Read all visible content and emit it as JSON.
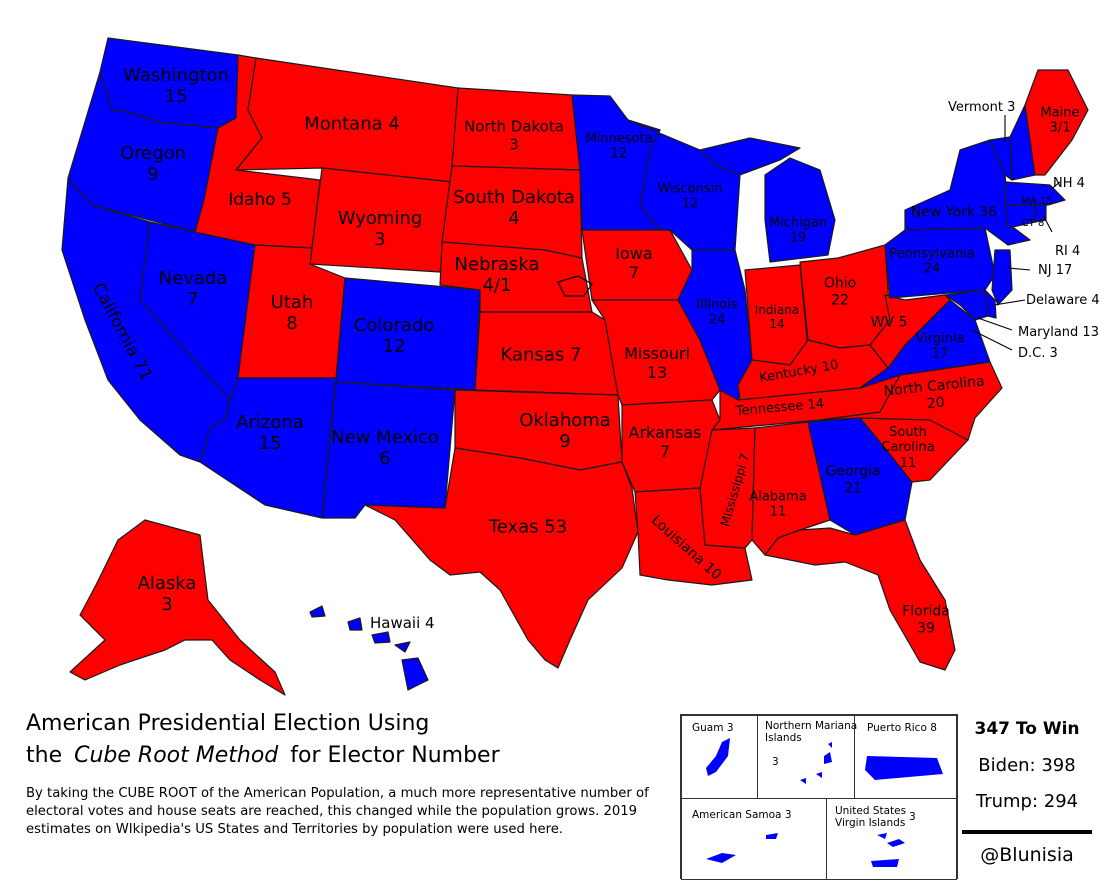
{
  "colors": {
    "dem": "#0000ff",
    "rep": "#ff0000",
    "border": "#1a1a1a"
  },
  "states": {
    "WA": {
      "name": "Washington",
      "votes": "15",
      "party": "dem"
    },
    "OR": {
      "name": "Oregon",
      "votes": "9",
      "party": "dem"
    },
    "CA": {
      "name": "California",
      "votes": "71",
      "party": "dem"
    },
    "NV": {
      "name": "Nevada",
      "votes": "7",
      "party": "dem"
    },
    "ID": {
      "name": "Idaho",
      "votes": "5",
      "party": "rep"
    },
    "MT": {
      "name": "Montana",
      "votes": "4",
      "party": "rep"
    },
    "WY": {
      "name": "Wyoming",
      "votes": "3",
      "party": "rep"
    },
    "UT": {
      "name": "Utah",
      "votes": "8",
      "party": "rep"
    },
    "AZ": {
      "name": "Arizona",
      "votes": "15",
      "party": "dem"
    },
    "CO": {
      "name": "Colorado",
      "votes": "12",
      "party": "dem"
    },
    "NM": {
      "name": "New Mexico",
      "votes": "6",
      "party": "dem"
    },
    "ND": {
      "name": "North Dakota",
      "votes": "3",
      "party": "rep"
    },
    "SD": {
      "name": "South Dakota",
      "votes": "4",
      "party": "rep"
    },
    "NE": {
      "name": "Nebraska",
      "votes": "4/1",
      "party": "rep"
    },
    "KS": {
      "name": "Kansas",
      "votes": "7",
      "party": "rep"
    },
    "OK": {
      "name": "Oklahoma",
      "votes": "9",
      "party": "rep"
    },
    "TX": {
      "name": "Texas",
      "votes": "53",
      "party": "rep"
    },
    "MN": {
      "name": "Minnesota",
      "votes": "12",
      "party": "dem"
    },
    "IA": {
      "name": "Iowa",
      "votes": "7",
      "party": "rep"
    },
    "MO": {
      "name": "Missouri",
      "votes": "13",
      "party": "rep"
    },
    "AR": {
      "name": "Arkansas",
      "votes": "7",
      "party": "rep"
    },
    "LA": {
      "name": "Louisiana",
      "votes": "10",
      "party": "rep"
    },
    "WI": {
      "name": "Wisconsin",
      "votes": "12",
      "party": "dem"
    },
    "IL": {
      "name": "Illinois",
      "votes": "24",
      "party": "dem"
    },
    "MI": {
      "name": "Michigan",
      "votes": "19",
      "party": "dem"
    },
    "IN": {
      "name": "Indiana",
      "votes": "14",
      "party": "rep"
    },
    "OH": {
      "name": "Ohio",
      "votes": "22",
      "party": "rep"
    },
    "KY": {
      "name": "Kentucky",
      "votes": "10",
      "party": "rep"
    },
    "TN": {
      "name": "Tennessee",
      "votes": "14",
      "party": "rep"
    },
    "MS": {
      "name": "Mississippi",
      "votes": "7",
      "party": "rep"
    },
    "AL": {
      "name": "Alabama",
      "votes": "11",
      "party": "rep"
    },
    "GA": {
      "name": "Georgia",
      "votes": "21",
      "party": "dem"
    },
    "FL": {
      "name": "Florida",
      "votes": "39",
      "party": "rep"
    },
    "SC": {
      "name": "South Carolina",
      "votes": "11",
      "party": "rep"
    },
    "NC": {
      "name": "North Carolina",
      "votes": "20",
      "party": "rep"
    },
    "VA": {
      "name": "Virginia",
      "votes": "17",
      "party": "dem"
    },
    "WV": {
      "name": "WV",
      "votes": "5",
      "party": "rep"
    },
    "PA": {
      "name": "Pennsylvania",
      "votes": "24",
      "party": "dem"
    },
    "NY": {
      "name": "New York",
      "votes": "36",
      "party": "dem"
    },
    "VT": {
      "name": "Vermont",
      "votes": "3",
      "party": "dem"
    },
    "NH": {
      "name": "NH",
      "votes": "4",
      "party": "dem"
    },
    "ME": {
      "name": "Maine",
      "votes": "3/1",
      "party": "rep"
    },
    "MA": {
      "name": "MA",
      "votes": "15",
      "party": "dem"
    },
    "CT": {
      "name": "CT",
      "votes": "8",
      "party": "dem"
    },
    "RI": {
      "name": "RI",
      "votes": "4",
      "party": "dem"
    },
    "NJ": {
      "name": "NJ",
      "votes": "17",
      "party": "dem"
    },
    "DE": {
      "name": "Delaware",
      "votes": "4",
      "party": "dem"
    },
    "MD": {
      "name": "Maryland",
      "votes": "13",
      "party": "dem"
    },
    "DC": {
      "name": "D.C.",
      "votes": "3",
      "party": "dem"
    },
    "AK": {
      "name": "Alaska",
      "votes": "3",
      "party": "rep"
    },
    "HI": {
      "name": "Hawaii",
      "votes": "4",
      "party": "dem"
    }
  },
  "labels": {
    "WA": "Washington\n15",
    "OR": "Oregon\n9",
    "CA": "California 71",
    "NV": "Nevada\n7",
    "ID": "Idaho 5",
    "MT": "Montana 4",
    "WY": "Wyoming\n3",
    "UT": "Utah\n8",
    "AZ": "Arizona\n15",
    "CO": "Colorado\n12",
    "NM": "New Mexico\n6",
    "ND": "North Dakota\n3",
    "SD": "South Dakota\n4",
    "NE": "Nebraska\n4/1",
    "KS": "Kansas 7",
    "OK": "Oklahoma\n9",
    "TX": "Texas 53",
    "MN": "Minnesota\n12",
    "IA": "Iowa\n7",
    "MO": "Missouri\n13",
    "AR": "Arkansas\n7",
    "LA": "Louisiana 10",
    "WI": "Wisconsin\n12",
    "IL": "Illinois\n24",
    "MI": "Michigan\n19",
    "IN": "Indiana\n14",
    "OH": "Ohio\n22",
    "KY": "Kentucky 10",
    "TN": "Tennessee 14",
    "MS": "Mississippi 7",
    "AL": "Alabama\n11",
    "GA": "Georgia\n21",
    "FL": "Florida\n39",
    "SC": "South\nCarolina\n11",
    "NC": "North Carolina\n20",
    "VA": "Virginia\n17",
    "WV": "WV 5",
    "PA": "Pennsylvania\n24",
    "NY": "New York 36",
    "ME": "Maine\n3/1",
    "MA": "MA 15",
    "CT": "CT 8",
    "AK": "Alaska\n3"
  },
  "callouts": {
    "VT": "Vermont 3",
    "NH": "NH 4",
    "RI": "RI 4",
    "NJ": "NJ 17",
    "DE": "Delaware 4",
    "MD": "Maryland 13",
    "DC": "D.C. 3",
    "HI": "Hawaii 4"
  },
  "title": {
    "line1": "American Presidential Election Using",
    "line2_pre": "the",
    "line2_em": "Cube Root Method",
    "line2_post": "for Elector Number"
  },
  "description": "By taking the CUBE ROOT of the American Population, a much more representative number of electoral votes and house seats are reached, this changed while the population grows. 2019 estimates on WIkipedia's US States and Territories by population were used here.",
  "territories": {
    "guam": {
      "name": "Guam",
      "votes": "3"
    },
    "nmi": {
      "name": "Northern Mariana\nIslands",
      "votes": "3"
    },
    "pr": {
      "name": "Puerto Rico",
      "votes": "8"
    },
    "as": {
      "name": "American Samoa",
      "votes": "3"
    },
    "vi": {
      "name": "United States\nVirgin Islands",
      "votes": "3"
    }
  },
  "scoreboard": {
    "to_win": "347 To Win",
    "biden": "Biden: 398",
    "trump": "Trump: 294",
    "handle": "@Blunisia"
  }
}
